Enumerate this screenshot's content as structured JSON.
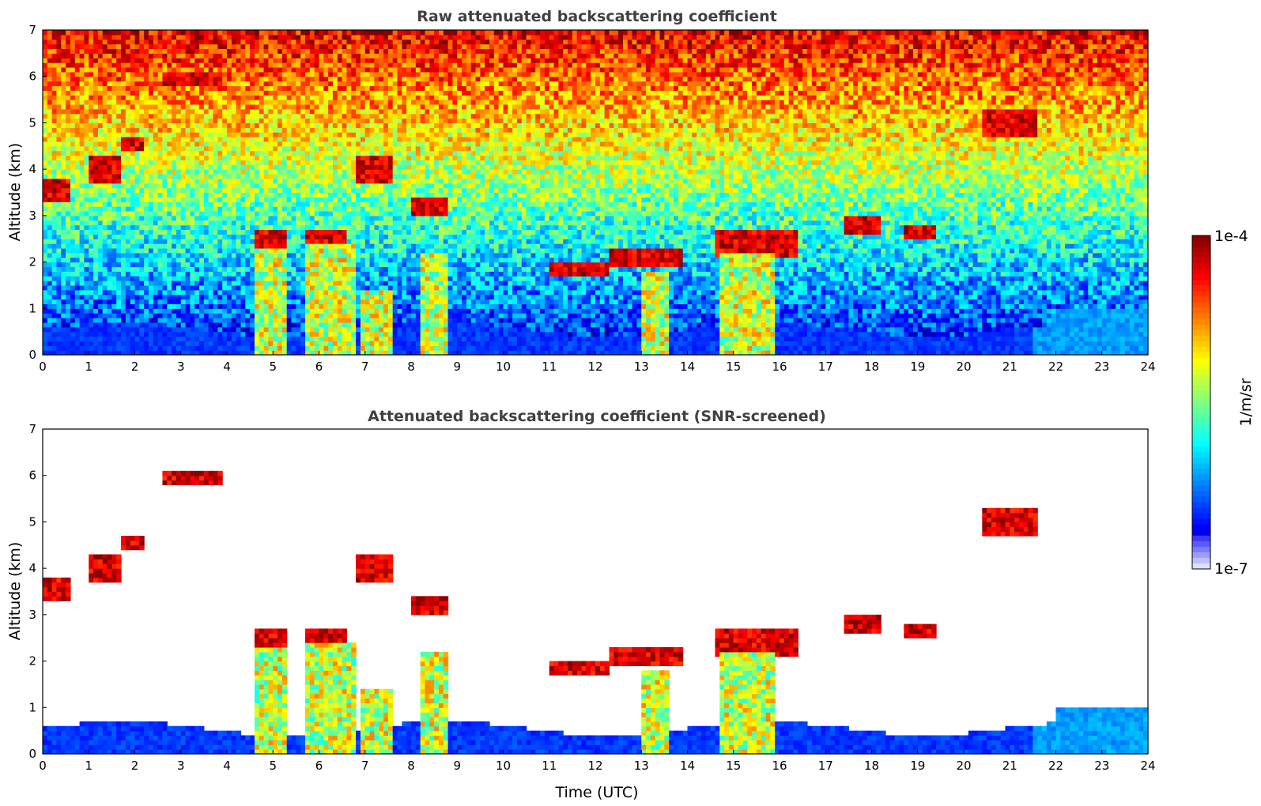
{
  "chart_data": [
    {
      "type": "heatmap",
      "title": "Raw attenuated backscattering coefficient",
      "ylabel": "Altitude (km)",
      "xlabel": "",
      "xlim": [
        0,
        24
      ],
      "ylim": [
        0,
        7
      ],
      "x_ticks": [
        0,
        1,
        2,
        3,
        4,
        5,
        6,
        7,
        8,
        9,
        10,
        11,
        12,
        13,
        14,
        15,
        16,
        17,
        18,
        19,
        20,
        21,
        22,
        23,
        24
      ],
      "y_ticks": [
        0,
        1,
        2,
        3,
        4,
        5,
        6,
        7
      ],
      "grid": false,
      "screened": false,
      "cloud_layers": [
        {
          "t0": 0.0,
          "t1": 0.6,
          "alt": 3.6,
          "thick": 0.5
        },
        {
          "t0": 1.0,
          "t1": 1.7,
          "alt": 4.0,
          "thick": 0.6
        },
        {
          "t0": 1.7,
          "t1": 2.2,
          "alt": 4.5,
          "thick": 0.3
        },
        {
          "t0": 2.6,
          "t1": 3.9,
          "alt": 5.95,
          "thick": 0.3
        },
        {
          "t0": 4.6,
          "t1": 5.3,
          "alt": 2.5,
          "thick": 0.45
        },
        {
          "t0": 5.7,
          "t1": 6.6,
          "alt": 2.5,
          "thick": 0.45
        },
        {
          "t0": 6.8,
          "t1": 7.6,
          "alt": 4.0,
          "thick": 0.5
        },
        {
          "t0": 8.0,
          "t1": 8.8,
          "alt": 3.2,
          "thick": 0.4
        },
        {
          "t0": 11.0,
          "t1": 12.3,
          "alt": 1.9,
          "thick": 0.3
        },
        {
          "t0": 12.3,
          "t1": 13.9,
          "alt": 2.1,
          "thick": 0.3
        },
        {
          "t0": 14.6,
          "t1": 16.4,
          "alt": 2.4,
          "thick": 0.6
        },
        {
          "t0": 17.4,
          "t1": 18.2,
          "alt": 2.8,
          "thick": 0.35
        },
        {
          "t0": 18.7,
          "t1": 19.4,
          "alt": 2.6,
          "thick": 0.3
        },
        {
          "t0": 20.4,
          "t1": 21.6,
          "alt": 5.0,
          "thick": 0.5
        }
      ],
      "precip_shafts": [
        {
          "t0": 4.6,
          "t1": 5.3,
          "top": 2.3
        },
        {
          "t0": 5.7,
          "t1": 6.8,
          "top": 2.4
        },
        {
          "t0": 6.9,
          "t1": 7.6,
          "top": 1.4
        },
        {
          "t0": 8.2,
          "t1": 8.8,
          "top": 2.2
        },
        {
          "t0": 13.0,
          "t1": 13.6,
          "top": 1.8
        },
        {
          "t0": 14.7,
          "t1": 15.9,
          "top": 2.2
        }
      ]
    },
    {
      "type": "heatmap",
      "title": "Attenuated backscattering coefficient (SNR-screened)",
      "ylabel": "Altitude (km)",
      "xlabel": "Time (UTC)",
      "xlim": [
        0,
        24
      ],
      "ylim": [
        0,
        7
      ],
      "x_ticks": [
        0,
        1,
        2,
        3,
        4,
        5,
        6,
        7,
        8,
        9,
        10,
        11,
        12,
        13,
        14,
        15,
        16,
        17,
        18,
        19,
        20,
        21,
        22,
        23,
        24
      ],
      "y_ticks": [
        0,
        1,
        2,
        3,
        4,
        5,
        6,
        7
      ],
      "grid": false,
      "screened": true
    }
  ],
  "colorbar": {
    "label": "1/m/sr",
    "min_label": "1e-7",
    "max_label": "1e-4",
    "scale": "log",
    "colormap": "jet"
  }
}
